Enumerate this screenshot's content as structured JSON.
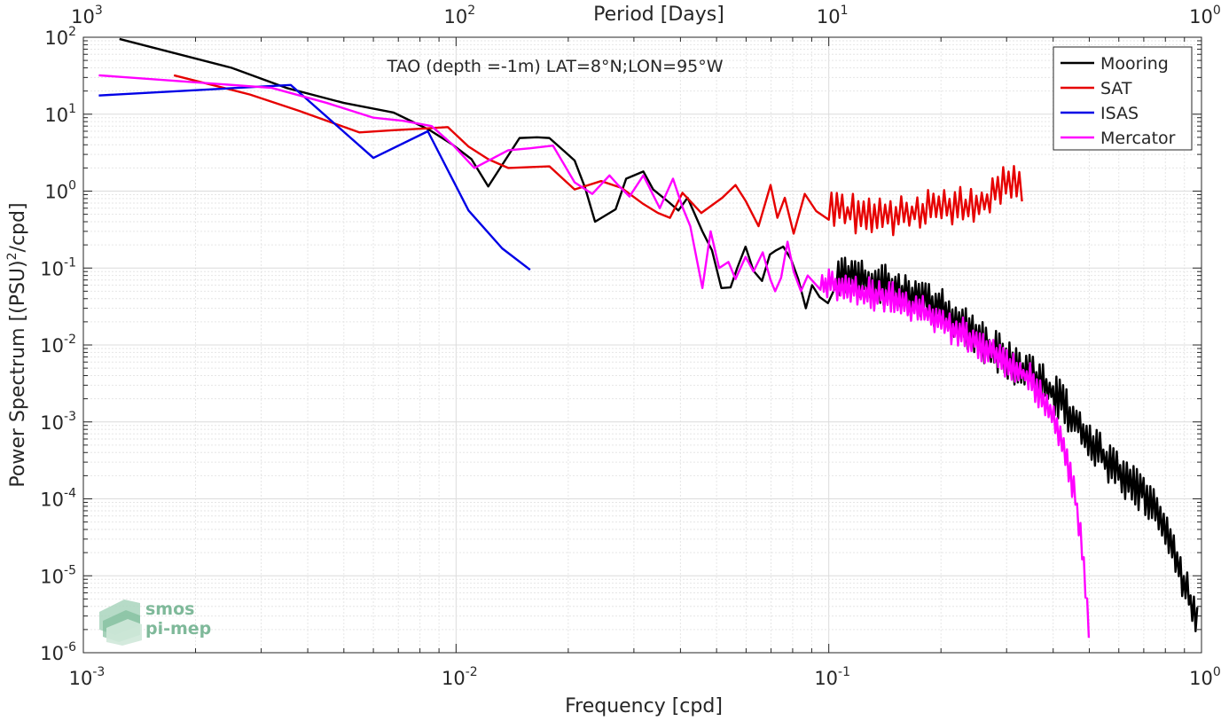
{
  "chart_data": {
    "type": "line",
    "title": "TAO (depth =-1m) LAT=8°N;LON=95°W",
    "xlabel": "Frequency [cpd]",
    "ylabel": "Power Spectrum [(PSU)^2/cpd]",
    "ylabel_pre": "Power Spectrum [(PSU)",
    "ylabel_sup": "2",
    "ylabel_post": "/cpd]",
    "x2label": "Period [Days]",
    "xscale": "log",
    "yscale": "log",
    "xlim": [
      0.001,
      1
    ],
    "ylim": [
      1e-06,
      100
    ],
    "grid": true,
    "legend_position": "top-right",
    "x_ticks": [
      {
        "value": 0.001,
        "base": "10",
        "exp": "-3"
      },
      {
        "value": 0.01,
        "base": "10",
        "exp": "-2"
      },
      {
        "value": 0.1,
        "base": "10",
        "exp": "-1"
      },
      {
        "value": 1,
        "base": "10",
        "exp": "0"
      }
    ],
    "x2_ticks": [
      {
        "value": 1000,
        "base": "10",
        "exp": "3"
      },
      {
        "value": 100,
        "base": "10",
        "exp": "2"
      },
      {
        "value": 10,
        "base": "10",
        "exp": "1"
      },
      {
        "value": 1,
        "base": "10",
        "exp": "0"
      }
    ],
    "y_ticks": [
      {
        "value": 100,
        "base": "10",
        "exp": "2"
      },
      {
        "value": 10,
        "base": "10",
        "exp": "1"
      },
      {
        "value": 1,
        "base": "10",
        "exp": "0"
      },
      {
        "value": 0.1,
        "base": "10",
        "exp": "-1"
      },
      {
        "value": 0.01,
        "base": "10",
        "exp": "-2"
      },
      {
        "value": 0.001,
        "base": "10",
        "exp": "-3"
      },
      {
        "value": 0.0001,
        "base": "10",
        "exp": "-4"
      },
      {
        "value": 1e-05,
        "base": "10",
        "exp": "-5"
      },
      {
        "value": 1e-06,
        "base": "10",
        "exp": "-6"
      }
    ],
    "series": [
      {
        "name": "Mooring",
        "color": "#000000",
        "generated_tail": {
          "x_start": 0.105,
          "x_end": 0.98,
          "step_log10": 0.0045,
          "seed": 3,
          "noise_amp_log10": 0.28
        },
        "x": [
          0.00125,
          0.0025,
          0.0035,
          0.005,
          0.0068,
          0.0085,
          0.0098,
          0.011,
          0.0122,
          0.0148,
          0.0165,
          0.0178,
          0.0198,
          0.0208,
          0.0222,
          0.0236,
          0.0268,
          0.0286,
          0.0318,
          0.0338,
          0.0372,
          0.0395,
          0.0418,
          0.0458,
          0.0486,
          0.0515,
          0.0545,
          0.0568,
          0.0598,
          0.0628,
          0.0662,
          0.0695,
          0.0722,
          0.0755,
          0.0792,
          0.0828,
          0.0868,
          0.0902,
          0.0945,
          0.0995
        ],
        "y": [
          95,
          40,
          22,
          14,
          10.5,
          6.2,
          4.0,
          2.6,
          1.15,
          4.9,
          5.0,
          4.9,
          3.1,
          2.5,
          1.1,
          0.4,
          0.58,
          1.45,
          1.8,
          1.05,
          0.72,
          0.56,
          0.82,
          0.3,
          0.17,
          0.055,
          0.056,
          0.1,
          0.19,
          0.092,
          0.068,
          0.15,
          0.17,
          0.19,
          0.13,
          0.072,
          0.03,
          0.06,
          0.042,
          0.035
        ]
      },
      {
        "name": "SAT",
        "color": "#e60000",
        "generated_tail": {
          "x_start": 0.1,
          "x_end": 0.335,
          "step_log10": 0.0072,
          "seed": 7,
          "noise_amp_log10": 0.26
        },
        "x": [
          0.00175,
          0.0028,
          0.0038,
          0.0055,
          0.0068,
          0.0082,
          0.0095,
          0.0108,
          0.0122,
          0.0138,
          0.0158,
          0.0178,
          0.0208,
          0.0245,
          0.0278,
          0.0318,
          0.0348,
          0.0375,
          0.0405,
          0.0455,
          0.0518,
          0.0562,
          0.0598,
          0.0648,
          0.0698,
          0.0728,
          0.0762,
          0.0805,
          0.0862,
          0.0925
        ],
        "y": [
          32,
          18,
          11,
          5.8,
          6.2,
          6.5,
          6.8,
          3.8,
          2.6,
          2.0,
          2.05,
          2.1,
          1.05,
          1.35,
          1.1,
          0.68,
          0.52,
          0.45,
          0.95,
          0.52,
          0.82,
          1.2,
          0.75,
          0.35,
          1.2,
          0.45,
          0.82,
          0.28,
          0.92,
          0.55
        ]
      },
      {
        "name": "ISAS",
        "color": "#0000e6",
        "x": [
          0.0011,
          0.0036,
          0.006,
          0.0084,
          0.0108,
          0.0133,
          0.0158
        ],
        "y": [
          17.5,
          24,
          2.7,
          6.0,
          0.56,
          0.18,
          0.095
        ]
      },
      {
        "name": "Mercator",
        "color": "#ff00ff",
        "generated_tail": {
          "x_start": 0.095,
          "x_end": 0.503,
          "step_log10": 0.0045,
          "seed": 11,
          "noise_amp_log10": 0.22
        },
        "x": [
          0.0011,
          0.0032,
          0.0045,
          0.006,
          0.0072,
          0.0086,
          0.0098,
          0.0112,
          0.0138,
          0.0158,
          0.0182,
          0.0208,
          0.0232,
          0.0258,
          0.0272,
          0.0292,
          0.0318,
          0.0352,
          0.0382,
          0.0405,
          0.0425,
          0.0458,
          0.0482,
          0.0508,
          0.0538,
          0.0562,
          0.0598,
          0.0628,
          0.0665,
          0.0698,
          0.0718,
          0.0745,
          0.0775,
          0.0805,
          0.0842,
          0.0878
        ],
        "y": [
          32,
          22,
          14,
          9.0,
          8.2,
          7.0,
          4.0,
          2.0,
          3.4,
          3.6,
          3.9,
          1.3,
          0.92,
          1.6,
          1.2,
          0.85,
          1.6,
          0.6,
          1.45,
          0.62,
          0.35,
          0.055,
          0.3,
          0.1,
          0.12,
          0.072,
          0.14,
          0.09,
          0.16,
          0.07,
          0.05,
          0.075,
          0.22,
          0.09,
          0.05,
          0.08
        ]
      }
    ]
  },
  "watermark": {
    "line1": "smos",
    "line2": "pi-mep"
  }
}
